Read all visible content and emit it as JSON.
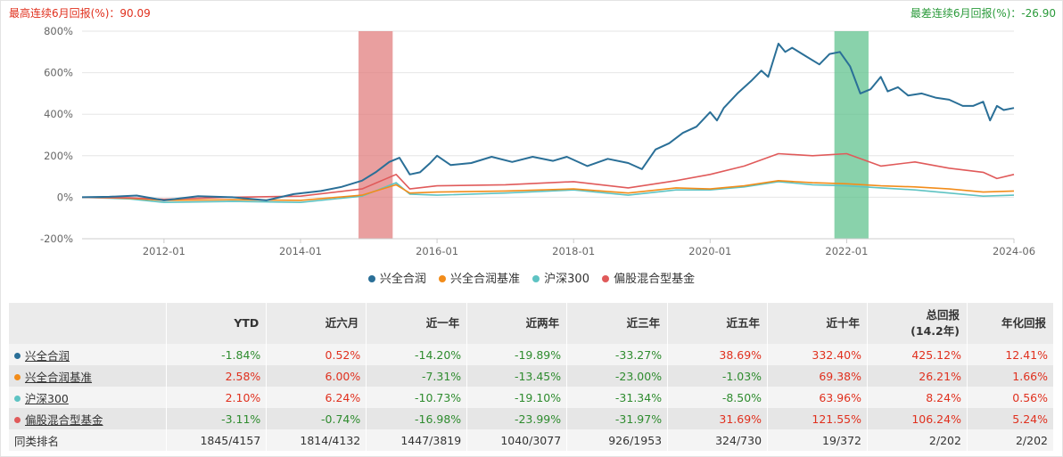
{
  "header": {
    "left_label": "最高连续6月回报(%)：90.09",
    "right_label": "最差连续6月回报(%)：-26.90"
  },
  "colors": {
    "fund": "#2a6f97",
    "benchmark": "#f28c1a",
    "csi300": "#5ec3c3",
    "category": "#e05a5a",
    "best_band": "#e07a7a",
    "worst_band": "#5cc08a"
  },
  "chart_data": {
    "type": "line",
    "ylim": [
      -200,
      800
    ],
    "y_ticks": [
      "800%",
      "600%",
      "400%",
      "200%",
      "0%",
      "-200%"
    ],
    "y_tick_values": [
      800,
      600,
      400,
      200,
      0,
      -200
    ],
    "x_range": [
      2010.8,
      2024.45
    ],
    "x_ticks": [
      "2012-01",
      "2014-01",
      "2016-01",
      "2018-01",
      "2020-01",
      "2022-01",
      "2024-06"
    ],
    "x_tick_values": [
      2012.0,
      2014.0,
      2016.0,
      2018.0,
      2020.0,
      2022.0,
      2024.45
    ],
    "bands": [
      {
        "name": "best-6m",
        "x0": 2014.85,
        "x1": 2015.35
      },
      {
        "name": "worst-6m",
        "x0": 2021.82,
        "x1": 2022.32
      }
    ],
    "series": [
      {
        "name": "兴全合润",
        "key": "fund",
        "x": [
          2010.8,
          2011.2,
          2011.6,
          2012.0,
          2012.5,
          2013.0,
          2013.5,
          2013.9,
          2014.3,
          2014.6,
          2014.9,
          2015.1,
          2015.3,
          2015.45,
          2015.6,
          2015.75,
          2015.9,
          2016.0,
          2016.2,
          2016.5,
          2016.8,
          2017.1,
          2017.4,
          2017.7,
          2017.9,
          2018.2,
          2018.5,
          2018.8,
          2019.0,
          2019.2,
          2019.4,
          2019.6,
          2019.8,
          2020.0,
          2020.1,
          2020.2,
          2020.4,
          2020.6,
          2020.75,
          2020.85,
          2021.0,
          2021.1,
          2021.2,
          2021.4,
          2021.6,
          2021.75,
          2021.9,
          2022.05,
          2022.2,
          2022.35,
          2022.5,
          2022.6,
          2022.75,
          2022.9,
          2023.1,
          2023.3,
          2023.5,
          2023.7,
          2023.85,
          2024.0,
          2024.1,
          2024.2,
          2024.3,
          2024.45
        ],
        "y": [
          0,
          2,
          8,
          -15,
          5,
          0,
          -15,
          15,
          30,
          50,
          80,
          120,
          170,
          190,
          110,
          120,
          165,
          200,
          155,
          165,
          195,
          170,
          195,
          175,
          195,
          150,
          185,
          165,
          135,
          230,
          260,
          310,
          340,
          410,
          370,
          430,
          500,
          560,
          610,
          580,
          740,
          700,
          720,
          680,
          640,
          690,
          700,
          630,
          500,
          520,
          580,
          510,
          530,
          490,
          500,
          480,
          470,
          440,
          440,
          460,
          370,
          440,
          420,
          430
        ]
      },
      {
        "name": "兴全合润基准",
        "key": "benchmark",
        "x": [
          2010.8,
          2011.5,
          2012.0,
          2013.0,
          2014.0,
          2014.9,
          2015.4,
          2015.6,
          2016.0,
          2017.0,
          2018.0,
          2018.8,
          2019.5,
          2020.0,
          2020.5,
          2021.0,
          2021.5,
          2022.0,
          2022.5,
          2023.0,
          2023.5,
          2024.0,
          2024.45
        ],
        "y": [
          0,
          -5,
          -15,
          -12,
          -15,
          10,
          60,
          20,
          25,
          30,
          40,
          20,
          45,
          40,
          55,
          80,
          70,
          65,
          55,
          50,
          40,
          25,
          30
        ]
      },
      {
        "name": "沪深300",
        "key": "csi300",
        "x": [
          2010.8,
          2011.5,
          2012.0,
          2013.0,
          2014.0,
          2014.9,
          2015.4,
          2015.6,
          2016.0,
          2017.0,
          2018.0,
          2018.8,
          2019.5,
          2020.0,
          2020.5,
          2021.0,
          2021.5,
          2022.0,
          2022.5,
          2023.0,
          2023.5,
          2024.0,
          2024.45
        ],
        "y": [
          0,
          -8,
          -25,
          -20,
          -25,
          5,
          70,
          15,
          10,
          20,
          35,
          10,
          35,
          35,
          50,
          75,
          60,
          55,
          45,
          35,
          20,
          5,
          10
        ]
      },
      {
        "name": "偏股混合型基金",
        "key": "category",
        "x": [
          2010.8,
          2011.5,
          2012.0,
          2013.0,
          2014.0,
          2014.9,
          2015.4,
          2015.6,
          2016.0,
          2017.0,
          2018.0,
          2018.8,
          2019.5,
          2020.0,
          2020.5,
          2021.0,
          2021.5,
          2022.0,
          2022.5,
          2023.0,
          2023.5,
          2024.0,
          2024.2,
          2024.45
        ],
        "y": [
          0,
          -3,
          -10,
          0,
          5,
          40,
          110,
          40,
          55,
          60,
          75,
          45,
          80,
          110,
          150,
          210,
          200,
          210,
          150,
          170,
          140,
          120,
          90,
          110
        ]
      }
    ]
  },
  "legend": [
    "兴全合润",
    "兴全合润基准",
    "沪深300",
    "偏股混合型基金"
  ],
  "table": {
    "headers": [
      "",
      "YTD",
      "近六月",
      "近一年",
      "近两年",
      "近三年",
      "近五年",
      "近十年",
      "总回报\n(14.2年)",
      "年化回报"
    ],
    "rows": [
      {
        "name": "兴全合润",
        "key": "fund",
        "values": [
          "-1.84%",
          "0.52%",
          "-14.20%",
          "-19.89%",
          "-33.27%",
          "38.69%",
          "332.40%",
          "425.12%",
          "12.41%"
        ]
      },
      {
        "name": "兴全合润基准",
        "key": "benchmark",
        "values": [
          "2.58%",
          "6.00%",
          "-7.31%",
          "-13.45%",
          "-23.00%",
          "-1.03%",
          "69.38%",
          "26.21%",
          "1.66%"
        ]
      },
      {
        "name": "沪深300",
        "key": "csi300",
        "values": [
          "2.10%",
          "6.24%",
          "-10.73%",
          "-19.10%",
          "-31.34%",
          "-8.50%",
          "63.96%",
          "8.24%",
          "0.56%"
        ]
      },
      {
        "name": "偏股混合型基金",
        "key": "category",
        "values": [
          "-3.11%",
          "-0.74%",
          "-16.98%",
          "-23.99%",
          "-31.97%",
          "31.69%",
          "121.55%",
          "106.24%",
          "5.24%"
        ]
      }
    ],
    "rank_row": {
      "name": "同类排名",
      "values": [
        "1845/4157",
        "1814/4132",
        "1447/3819",
        "1040/3077",
        "926/1953",
        "324/730",
        "19/372",
        "2/202",
        "2/202"
      ]
    }
  }
}
